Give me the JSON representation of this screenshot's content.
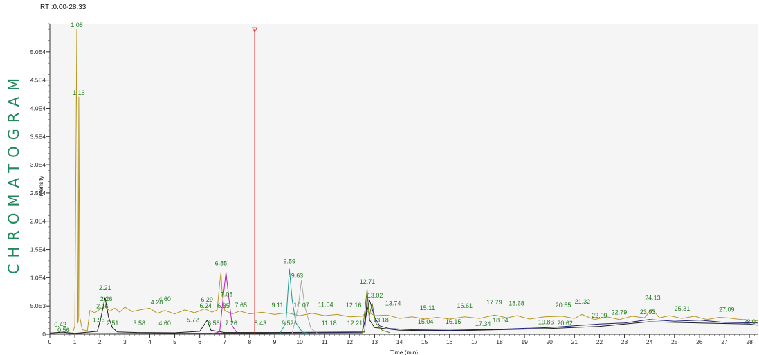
{
  "side_title": "CHROMATOGRAM",
  "rt_range": "RT :0.00-28.33",
  "colors": {
    "gold": "#b8961e",
    "black": "#1a1a1a",
    "navy": "#1d1d7a",
    "magenta": "#b323b3",
    "teal": "#179a8c",
    "gray": "#a8a8a8",
    "olive": "#5d7a12",
    "red": "#e03030",
    "label": "#1d7a1d",
    "plot_bg": "#f5f5f5"
  },
  "chart_data": {
    "type": "line",
    "title": "",
    "xlabel": "Time (min)",
    "ylabel": "Intensity",
    "xlim": [
      0,
      28.33
    ],
    "ylim": [
      0,
      55000
    ],
    "x_ticks": [
      0,
      1,
      2,
      3,
      4,
      5,
      6,
      7,
      8,
      9,
      10,
      11,
      12,
      13,
      14,
      15,
      16,
      17,
      18,
      19,
      20,
      21,
      22,
      23,
      24,
      25,
      26,
      27,
      28
    ],
    "y_ticks": [
      {
        "value": 0,
        "label": "0"
      },
      {
        "value": 5000,
        "label": "5.0E3"
      },
      {
        "value": 10000,
        "label": "1.0E4"
      },
      {
        "value": 15000,
        "label": "1.5E4"
      },
      {
        "value": 20000,
        "label": "2.0E4"
      },
      {
        "value": 25000,
        "label": "2.5E4"
      },
      {
        "value": 30000,
        "label": "3.0E4"
      },
      {
        "value": 35000,
        "label": "3.5E4"
      },
      {
        "value": 40000,
        "label": "4.0E4"
      },
      {
        "value": 45000,
        "label": "4.5E4"
      },
      {
        "value": 50000,
        "label": "5.0E4"
      }
    ],
    "grid": false,
    "marker_line": {
      "x": 8.2,
      "y_top": 54000
    },
    "series": [
      {
        "color": "gold",
        "points": [
          [
            0,
            0
          ],
          [
            0.9,
            0
          ],
          [
            1.0,
            1500
          ],
          [
            1.08,
            54000
          ],
          [
            1.12,
            2000
          ],
          [
            1.14,
            2500
          ],
          [
            1.16,
            42000
          ],
          [
            1.2,
            3000
          ],
          [
            1.3,
            800
          ],
          [
            1.5,
            600
          ],
          [
            1.6,
            4200
          ],
          [
            1.8,
            3800
          ],
          [
            2.0,
            4400
          ],
          [
            2.2,
            4900
          ],
          [
            2.4,
            4100
          ],
          [
            2.6,
            4600
          ],
          [
            2.8,
            3900
          ],
          [
            3.0,
            4800
          ],
          [
            3.3,
            4000
          ],
          [
            3.6,
            4300
          ],
          [
            4.0,
            4600
          ],
          [
            4.3,
            3700
          ],
          [
            4.6,
            4200
          ],
          [
            5.0,
            3600
          ],
          [
            5.4,
            4300
          ],
          [
            5.8,
            3800
          ],
          [
            6.2,
            4500
          ],
          [
            6.5,
            3900
          ],
          [
            6.7,
            4300
          ],
          [
            6.8,
            9000
          ],
          [
            6.85,
            11000
          ],
          [
            6.9,
            7000
          ],
          [
            7.0,
            4200
          ],
          [
            7.3,
            3600
          ],
          [
            7.6,
            4100
          ],
          [
            8.0,
            3600
          ],
          [
            8.5,
            3900
          ],
          [
            9.0,
            3500
          ],
          [
            9.5,
            3800
          ],
          [
            10.0,
            3300
          ],
          [
            10.5,
            3700
          ],
          [
            11.0,
            3300
          ],
          [
            11.5,
            3500
          ],
          [
            12.0,
            3100
          ],
          [
            12.5,
            3200
          ],
          [
            12.71,
            4000
          ],
          [
            13.0,
            3300
          ],
          [
            13.5,
            3400
          ],
          [
            14.0,
            2800
          ],
          [
            14.5,
            3100
          ],
          [
            15.0,
            2700
          ],
          [
            15.5,
            3000
          ],
          [
            16.0,
            2700
          ],
          [
            16.6,
            3100
          ],
          [
            17.2,
            2800
          ],
          [
            17.8,
            3400
          ],
          [
            18.3,
            2900
          ],
          [
            18.7,
            3300
          ],
          [
            19.2,
            2700
          ],
          [
            19.8,
            3100
          ],
          [
            20.5,
            3200
          ],
          [
            21.0,
            2800
          ],
          [
            21.3,
            3500
          ],
          [
            21.8,
            2600
          ],
          [
            22.3,
            3100
          ],
          [
            22.8,
            2600
          ],
          [
            23.3,
            3200
          ],
          [
            23.8,
            2900
          ],
          [
            24.1,
            4500
          ],
          [
            24.4,
            2900
          ],
          [
            24.8,
            3300
          ],
          [
            25.3,
            2800
          ],
          [
            25.8,
            3200
          ],
          [
            26.3,
            2600
          ],
          [
            26.8,
            3000
          ],
          [
            27.1,
            2900
          ],
          [
            27.5,
            2700
          ],
          [
            28.0,
            2500
          ],
          [
            28.33,
            2400
          ]
        ]
      },
      {
        "color": "black",
        "points": [
          [
            0,
            200
          ],
          [
            0.5,
            350
          ],
          [
            1.0,
            150
          ],
          [
            1.9,
            500
          ],
          [
            2.05,
            3000
          ],
          [
            2.21,
            6500
          ],
          [
            2.35,
            3000
          ],
          [
            2.5,
            1200
          ],
          [
            2.7,
            400
          ],
          [
            3.5,
            300
          ],
          [
            5.0,
            250
          ],
          [
            6.0,
            500
          ],
          [
            6.3,
            2500
          ],
          [
            6.45,
            700
          ],
          [
            7.0,
            300
          ],
          [
            9.0,
            300
          ],
          [
            12.6,
            400
          ],
          [
            12.71,
            7000
          ],
          [
            12.8,
            2500
          ],
          [
            13.0,
            1200
          ],
          [
            14.0,
            700
          ],
          [
            16.0,
            600
          ],
          [
            18.0,
            800
          ],
          [
            20.0,
            1000
          ],
          [
            22.0,
            1400
          ],
          [
            24.0,
            2200
          ],
          [
            26.0,
            2000
          ],
          [
            28.0,
            1800
          ],
          [
            28.33,
            1600
          ]
        ]
      },
      {
        "color": "navy",
        "points": [
          [
            0,
            100
          ],
          [
            5,
            150
          ],
          [
            9,
            200
          ],
          [
            12.5,
            250
          ],
          [
            12.8,
            6000
          ],
          [
            13.0,
            3000
          ],
          [
            13.2,
            1500
          ],
          [
            13.6,
            1000
          ],
          [
            14.5,
            800
          ],
          [
            16.0,
            700
          ],
          [
            18.0,
            900
          ],
          [
            20.0,
            1200
          ],
          [
            21.0,
            1500
          ],
          [
            22.0,
            1800
          ],
          [
            23.0,
            2000
          ],
          [
            24.0,
            2600
          ],
          [
            25.0,
            2300
          ],
          [
            26.0,
            2500
          ],
          [
            27.0,
            2100
          ],
          [
            28.33,
            2000
          ]
        ]
      },
      {
        "color": "magenta",
        "points": [
          [
            6.5,
            100
          ],
          [
            6.8,
            400
          ],
          [
            6.95,
            7000
          ],
          [
            7.05,
            11000
          ],
          [
            7.15,
            7000
          ],
          [
            7.3,
            1500
          ],
          [
            7.5,
            200
          ]
        ]
      },
      {
        "color": "teal",
        "points": [
          [
            9.2,
            100
          ],
          [
            9.45,
            2000
          ],
          [
            9.59,
            11500
          ],
          [
            9.7,
            6000
          ],
          [
            9.85,
            2000
          ],
          [
            10.1,
            400
          ],
          [
            10.4,
            100
          ]
        ]
      },
      {
        "color": "gray",
        "points": [
          [
            9.7,
            200
          ],
          [
            9.95,
            5000
          ],
          [
            10.07,
            9500
          ],
          [
            10.2,
            5000
          ],
          [
            10.45,
            1000
          ],
          [
            10.7,
            200
          ]
        ]
      },
      {
        "color": "olive",
        "points": [
          [
            12.5,
            200
          ],
          [
            12.62,
            4500
          ],
          [
            12.7,
            8000
          ],
          [
            12.78,
            3000
          ],
          [
            12.9,
            5500
          ],
          [
            13.05,
            2000
          ],
          [
            13.3,
            700
          ],
          [
            13.6,
            300
          ]
        ]
      }
    ],
    "annotations": [
      {
        "x": 1.08,
        "y": 54000,
        "text": "1.08"
      },
      {
        "x": 1.16,
        "y": 42000,
        "text": "1.16"
      },
      {
        "x": 0.42,
        "y": 1000,
        "text": "0.42"
      },
      {
        "x": 0.55,
        "y": 0,
        "text": "0.56"
      },
      {
        "x": 1.96,
        "y": 1800,
        "text": "1.96"
      },
      {
        "x": 2.1,
        "y": 4200,
        "text": "2.16"
      },
      {
        "x": 2.21,
        "y": 7500,
        "text": "2.21"
      },
      {
        "x": 2.26,
        "y": 5500,
        "text": "2.26"
      },
      {
        "x": 2.51,
        "y": 1200,
        "text": "2.51"
      },
      {
        "x": 3.58,
        "y": 1200,
        "text": "3.58"
      },
      {
        "x": 4.28,
        "y": 4900,
        "text": "4.28"
      },
      {
        "x": 4.6,
        "y": 5500,
        "text": "4.60"
      },
      {
        "x": 4.6,
        "y": 1200,
        "text": "4.60"
      },
      {
        "x": 5.72,
        "y": 1800,
        "text": "5.72"
      },
      {
        "x": 6.24,
        "y": 4300,
        "text": "6.24"
      },
      {
        "x": 6.29,
        "y": 5400,
        "text": "6.29"
      },
      {
        "x": 6.56,
        "y": 1200,
        "text": "6.56"
      },
      {
        "x": 6.85,
        "y": 11800,
        "text": "6.85"
      },
      {
        "x": 6.95,
        "y": 4300,
        "text": "6.35"
      },
      {
        "x": 7.08,
        "y": 6300,
        "text": "7.08"
      },
      {
        "x": 7.26,
        "y": 1200,
        "text": "7.26"
      },
      {
        "x": 7.65,
        "y": 4400,
        "text": "7.65"
      },
      {
        "x": 8.43,
        "y": 1200,
        "text": "8.43"
      },
      {
        "x": 9.11,
        "y": 4400,
        "text": "9.11"
      },
      {
        "x": 9.52,
        "y": 1200,
        "text": "9.52"
      },
      {
        "x": 9.59,
        "y": 12200,
        "text": "9.59"
      },
      {
        "x": 9.9,
        "y": 9600,
        "text": "9.63"
      },
      {
        "x": 10.07,
        "y": 4400,
        "text": "10.07"
      },
      {
        "x": 11.04,
        "y": 4500,
        "text": "11.04"
      },
      {
        "x": 11.18,
        "y": 1200,
        "text": "11.18"
      },
      {
        "x": 12.16,
        "y": 4400,
        "text": "12.16"
      },
      {
        "x": 12.21,
        "y": 1200,
        "text": "12.21"
      },
      {
        "x": 12.71,
        "y": 8600,
        "text": "12.71"
      },
      {
        "x": 13.02,
        "y": 6100,
        "text": "13.02"
      },
      {
        "x": 13.25,
        "y": 1800,
        "text": "13.18"
      },
      {
        "x": 13.74,
        "y": 4700,
        "text": "13.74"
      },
      {
        "x": 15.04,
        "y": 1500,
        "text": "15.04"
      },
      {
        "x": 15.11,
        "y": 3900,
        "text": "15.11"
      },
      {
        "x": 16.15,
        "y": 1500,
        "text": "16.15"
      },
      {
        "x": 16.61,
        "y": 4300,
        "text": "16.61"
      },
      {
        "x": 17.34,
        "y": 1100,
        "text": "17.34"
      },
      {
        "x": 17.79,
        "y": 4900,
        "text": "17.79"
      },
      {
        "x": 18.04,
        "y": 1700,
        "text": "18.04"
      },
      {
        "x": 18.68,
        "y": 4700,
        "text": "18.68"
      },
      {
        "x": 19.86,
        "y": 1400,
        "text": "19.86"
      },
      {
        "x": 20.55,
        "y": 4400,
        "text": "20.55"
      },
      {
        "x": 20.62,
        "y": 1200,
        "text": "20.62"
      },
      {
        "x": 21.32,
        "y": 5000,
        "text": "21.32"
      },
      {
        "x": 22.0,
        "y": 2600,
        "text": "22.09"
      },
      {
        "x": 22.79,
        "y": 3100,
        "text": "22.79"
      },
      {
        "x": 23.93,
        "y": 3200,
        "text": "23.93"
      },
      {
        "x": 24.13,
        "y": 5700,
        "text": "24.13"
      },
      {
        "x": 25.31,
        "y": 3800,
        "text": "25.31"
      },
      {
        "x": 27.09,
        "y": 3600,
        "text": "27.09"
      },
      {
        "x": 28.0,
        "y": 1500,
        "text": "28.0"
      }
    ]
  }
}
